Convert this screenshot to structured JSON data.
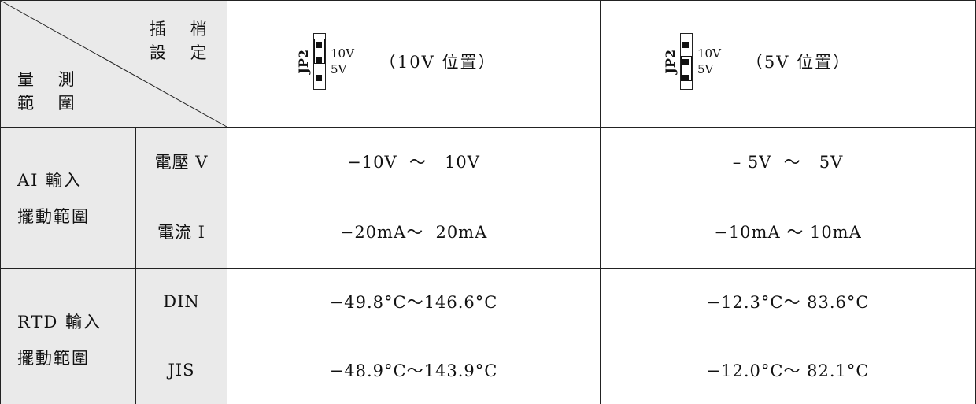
{
  "header": {
    "corner_top_line1": "插 梢",
    "corner_top_line2": "設 定",
    "corner_bottom_line1": "量 測",
    "corner_bottom_line2": "範 圍",
    "col1": {
      "jumper_label": "JP2",
      "upper_label": "10V",
      "lower_label": "5V",
      "caption": "（10V 位置）"
    },
    "col2": {
      "jumper_label": "JP2",
      "upper_label": "10V",
      "lower_label": "5V",
      "caption": "（5V 位置）"
    }
  },
  "groups": [
    {
      "label_line1": "AI 輸入",
      "label_line2": "擺動範圍",
      "rows": [
        {
          "type": "電壓 V",
          "range_10v": "−10V  ～   10V",
          "range_5v": "– 5V  ～   5V"
        },
        {
          "type": "電流 I",
          "range_10v": "−20mA～  20mA",
          "range_5v": "−10mA ～ 10mA"
        }
      ]
    },
    {
      "label_line1": "RTD 輸入",
      "label_line2": "擺動範圍",
      "rows": [
        {
          "type": "DIN",
          "range_10v": "−49.8°C～146.6°C",
          "range_5v": "−12.3°C～ 83.6°C"
        },
        {
          "type": "JIS",
          "range_10v": "−48.9°C～143.9°C",
          "range_5v": "−12.0°C～ 82.1°C"
        }
      ]
    }
  ],
  "colors": {
    "shade": "#eaeaea",
    "line": "#222222"
  }
}
